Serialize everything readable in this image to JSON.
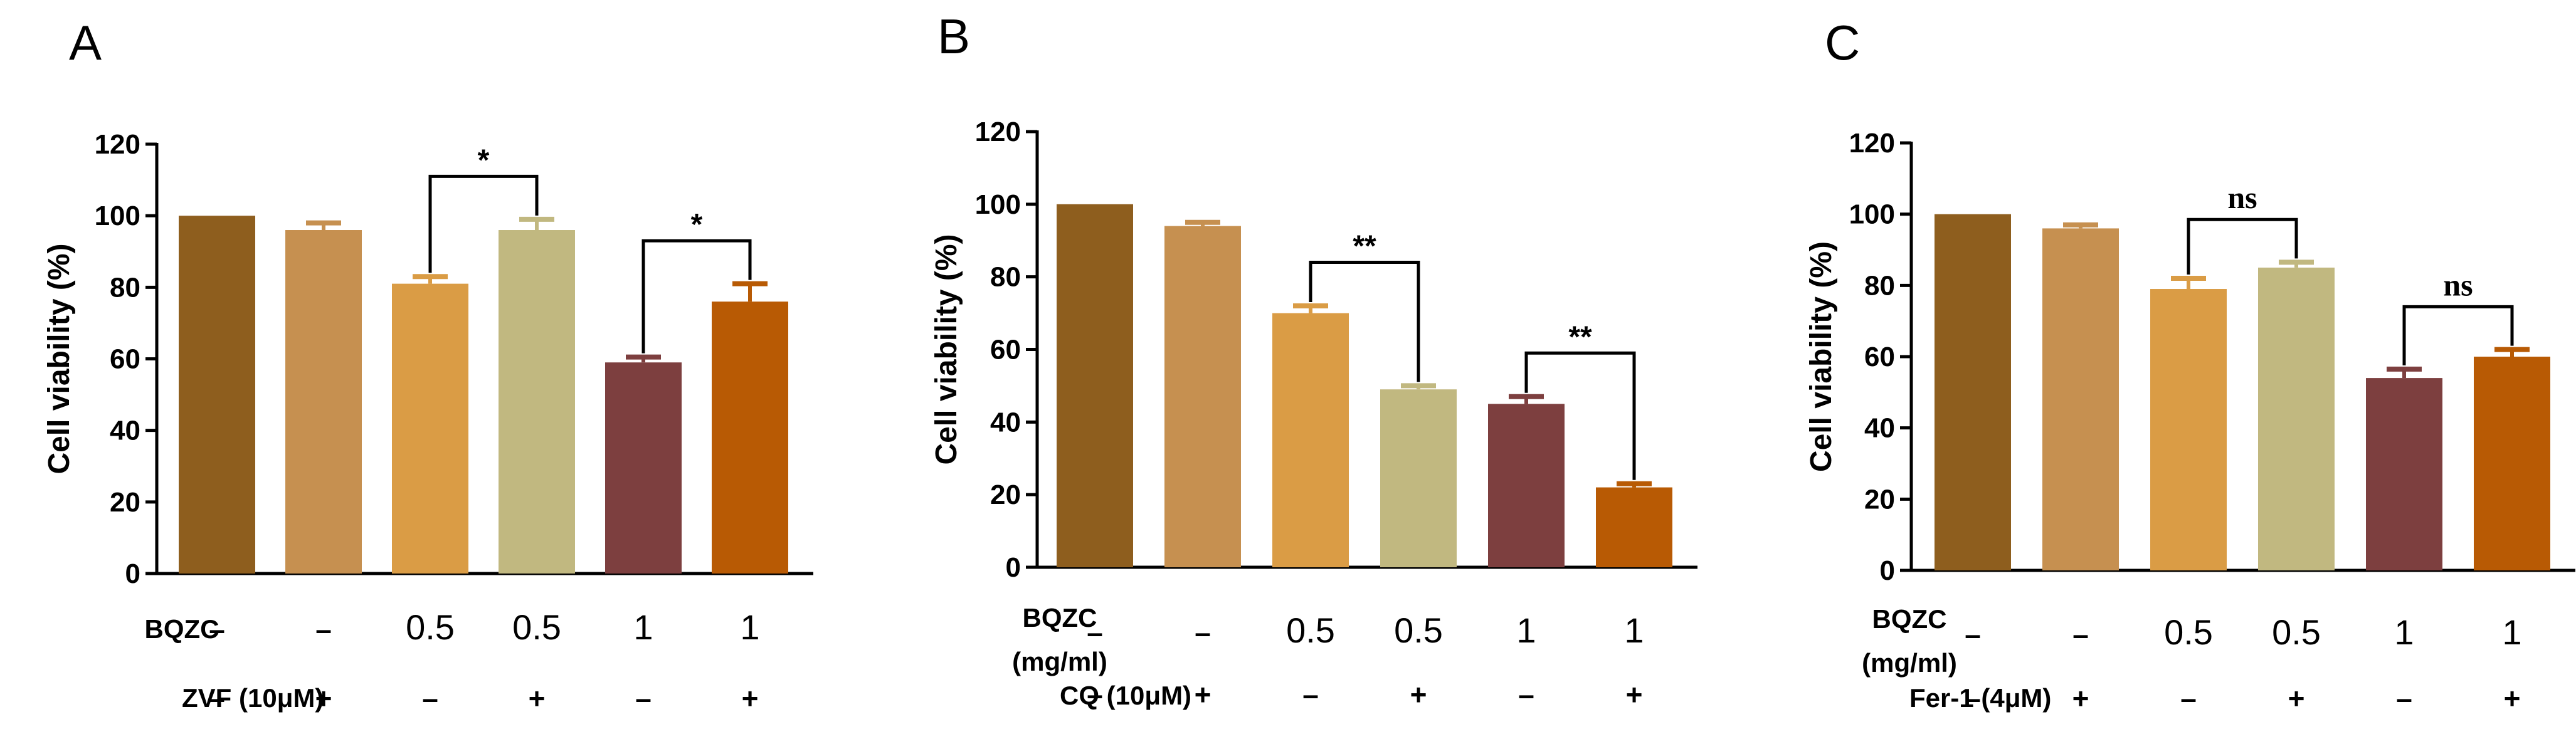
{
  "chart_data": [
    {
      "type": "bar",
      "panel": "A",
      "ylabel": "Cell viability (%)",
      "ylim": [
        0,
        120
      ],
      "yticks": [
        "0",
        "20",
        "40",
        "60",
        "80",
        "100",
        "120"
      ],
      "values": [
        100,
        96,
        81,
        96,
        59,
        76
      ],
      "errors": [
        0,
        2,
        2,
        3,
        1.5,
        5
      ],
      "colors": [
        "#8E5E1E",
        "#C69050",
        "#DA9C45",
        "#C1B880",
        "#7D3F3F",
        "#B85A04"
      ],
      "rows": [
        {
          "label": "BQZC",
          "label2": "",
          "cells": [
            "–",
            "–",
            "0.5",
            "0.5",
            "1",
            "1"
          ],
          "kind": "dose"
        },
        {
          "label": "ZVF (10μM)",
          "label2": "",
          "cells": [
            "–",
            "+",
            "–",
            "+",
            "–",
            "+"
          ],
          "kind": "sign"
        }
      ],
      "significance": [
        {
          "from": 2,
          "to": 3,
          "label": "*"
        },
        {
          "from": 4,
          "to": 5,
          "label": "*"
        }
      ]
    },
    {
      "type": "bar",
      "panel": "B",
      "ylabel": "Cell viability (%)",
      "ylim": [
        0,
        120
      ],
      "yticks": [
        "0",
        "20",
        "40",
        "60",
        "80",
        "100",
        "120"
      ],
      "values": [
        100,
        94,
        70,
        49,
        45,
        22
      ],
      "errors": [
        0,
        1,
        2,
        1,
        2,
        1
      ],
      "colors": [
        "#8E5E1E",
        "#C69050",
        "#DA9C45",
        "#C1B880",
        "#7D3F3F",
        "#B85A04"
      ],
      "rows": [
        {
          "label": "BQZC",
          "label2": "(mg/ml)",
          "cells": [
            "–",
            "–",
            "0.5",
            "0.5",
            "1",
            "1"
          ],
          "kind": "dose"
        },
        {
          "label": "CQ (10μM)",
          "label2": "",
          "cells": [
            "–",
            "+",
            "–",
            "+",
            "–",
            "+"
          ],
          "kind": "sign"
        }
      ],
      "significance": [
        {
          "from": 2,
          "to": 3,
          "label": "**"
        },
        {
          "from": 4,
          "to": 5,
          "label": "**"
        }
      ]
    },
    {
      "type": "bar",
      "panel": "C",
      "ylabel": "Cell viability (%)",
      "ylim": [
        0,
        120
      ],
      "yticks": [
        "0",
        "20",
        "40",
        "60",
        "80",
        "100",
        "120"
      ],
      "values": [
        100,
        96,
        79,
        85,
        54,
        60
      ],
      "errors": [
        0,
        1,
        3,
        1.5,
        2.5,
        2
      ],
      "colors": [
        "#8E5E1E",
        "#C69050",
        "#DA9C45",
        "#C1B880",
        "#7D3F3F",
        "#B85A04"
      ],
      "rows": [
        {
          "label": "BQZC",
          "label2": "(mg/ml)",
          "cells": [
            "–",
            "–",
            "0.5",
            "0.5",
            "1",
            "1"
          ],
          "kind": "dose"
        },
        {
          "label": "Fer-1 (4μM)",
          "label2": "",
          "cells": [
            "–",
            "+",
            "–",
            "+",
            "–",
            "+"
          ],
          "kind": "sign"
        }
      ],
      "significance": [
        {
          "from": 2,
          "to": 3,
          "label": "ns"
        },
        {
          "from": 4,
          "to": 5,
          "label": "ns"
        }
      ]
    }
  ]
}
